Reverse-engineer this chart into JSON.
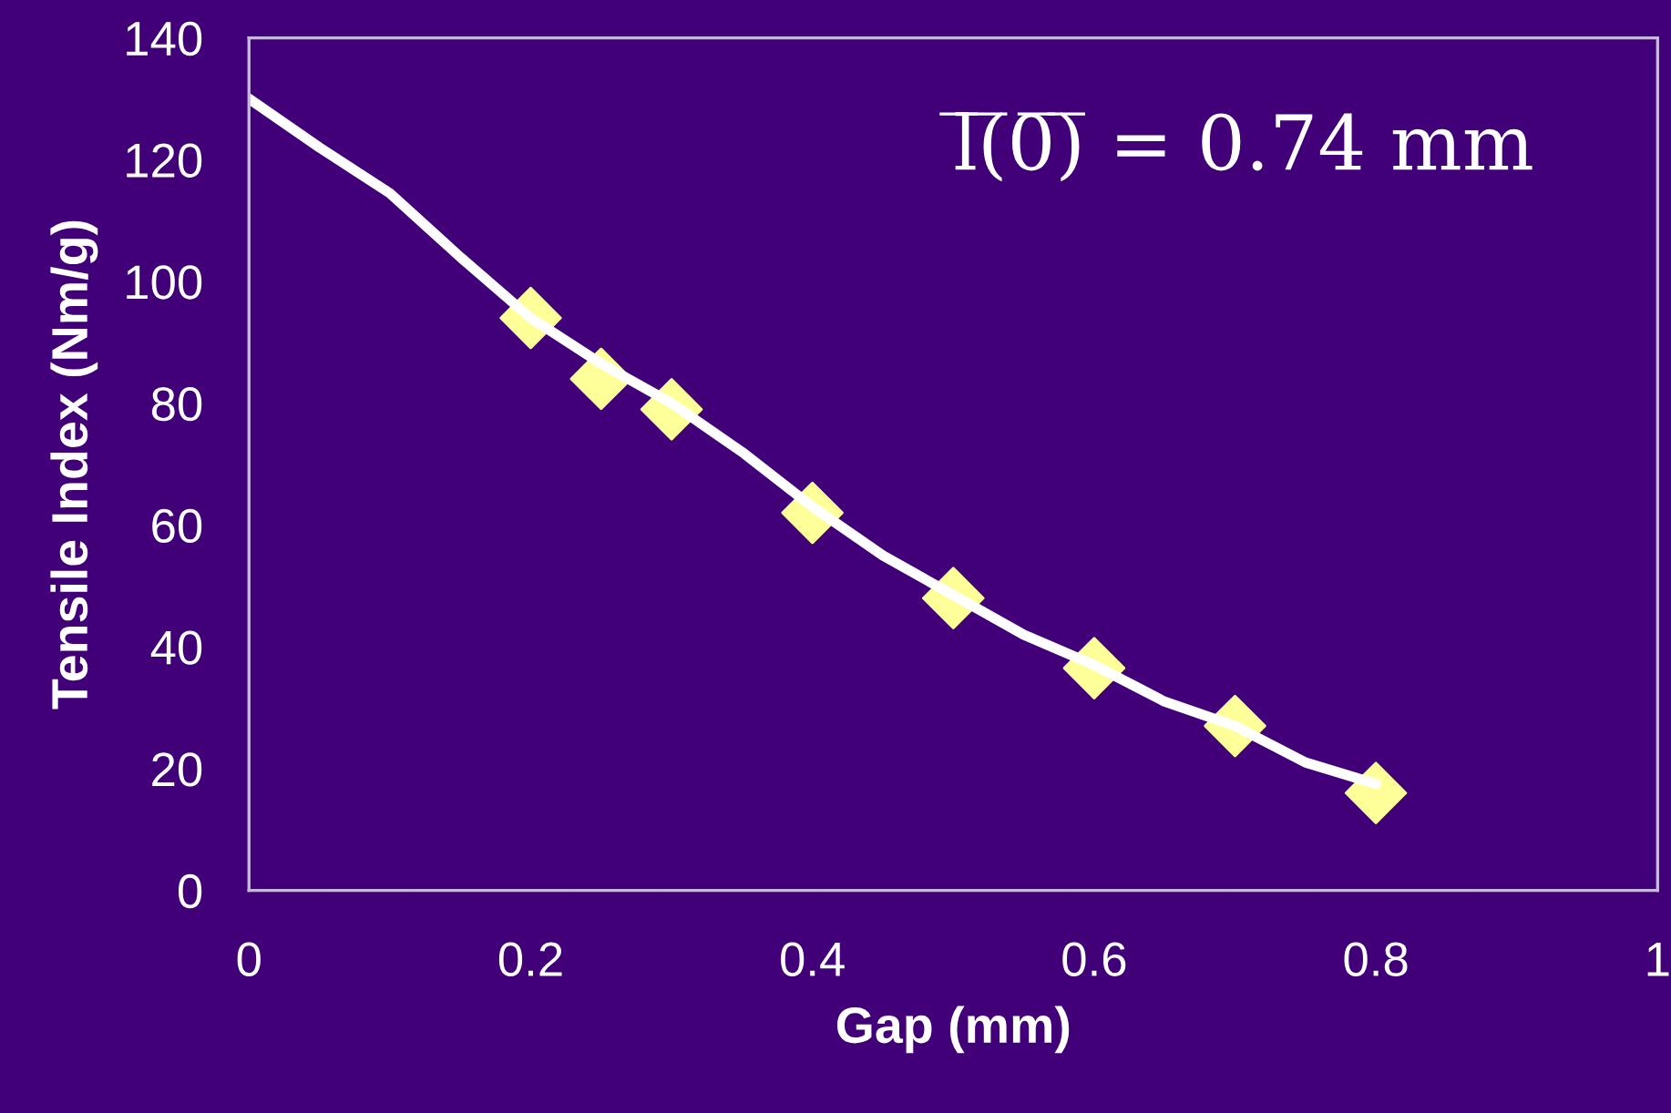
{
  "chart_data": {
    "type": "line",
    "xlabel": "Gap (mm)",
    "ylabel": "Tensile Index (Nm/g)",
    "annotations": [
      "l̅(̅0̅)̅ = 0.74 mm"
    ],
    "series": [
      {
        "color": "#ffffff",
        "x": [
          0,
          0.05,
          0.1,
          0.15,
          0.2,
          0.25,
          0.3,
          0.35,
          0.4,
          0.45,
          0.5,
          0.55,
          0.6,
          0.65,
          0.7,
          0.75,
          0.8
        ],
        "values": [
          130,
          122,
          114.5,
          104,
          94,
          86.5,
          80,
          72,
          63,
          55,
          48.5,
          42,
          37,
          31,
          27,
          21,
          17.5
        ],
        "marker": "none"
      },
      {
        "type": "scatter",
        "color": "#ffff99",
        "x": [
          0.2,
          0.25,
          0.3,
          0.4,
          0.5,
          0.6,
          0.7,
          0.8
        ],
        "values": [
          94,
          84,
          79,
          62,
          48,
          36.5,
          27,
          16
        ],
        "marker": "diamond"
      }
    ],
    "xlim": [
      0,
      1
    ],
    "xticks": [
      0,
      0.2,
      0.4,
      0.6,
      0.8,
      1
    ],
    "ylim": [
      0,
      140
    ],
    "yticks": [
      0,
      20,
      40,
      60,
      80,
      100,
      120,
      140
    ],
    "grid": false,
    "legend": false
  }
}
